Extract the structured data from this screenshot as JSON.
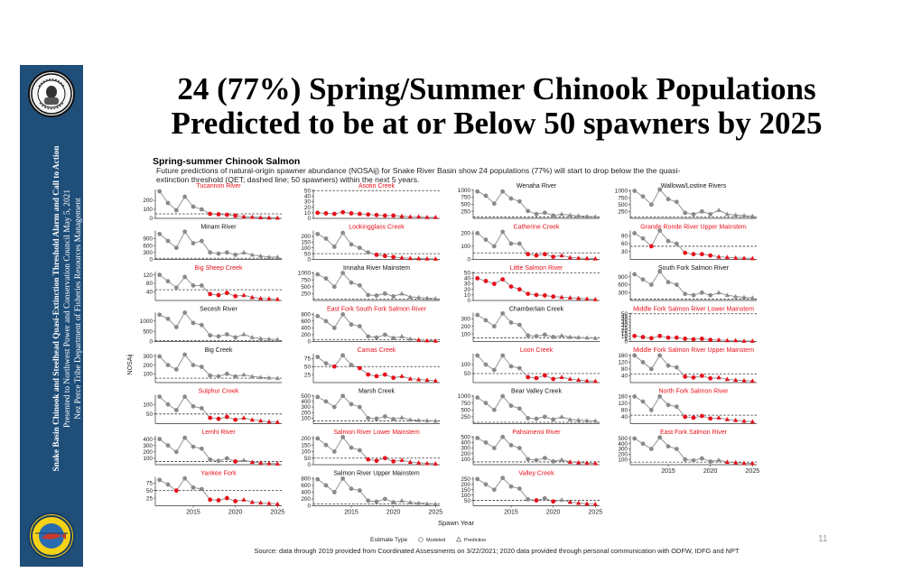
{
  "slide": {
    "title": "24 (77%) Spring/Summer Chinook Populations Predicted to be at or Below 50 spawners by 2025",
    "page_number": "11",
    "source_note": "Source: data through 2019 provided from Coordinated Assessments on 3/22/2021; 2020 data provided through personal communication with ODFW, IDFG and NPT",
    "sidebar": {
      "line1": "Snake Basin Chinook and Steelhead Quasi-Extinction Threshold Alarm and Call to Action",
      "line2": "Presented to Northwest Power and Conservation Council May 5, 2021",
      "line3": "Nez Perce Tribe Department of Fisheries Resources Management"
    },
    "colors": {
      "sidebar": "#1f4e79",
      "modeled": "#8a8a8a",
      "below_threshold": "#e8101a",
      "line": "#8a8a8a"
    }
  },
  "chart_data": {
    "type": "scatter",
    "title": "Spring-summer Chinook Salmon",
    "subtitle": "Future predictions of natural-origin spawner abundance (NOSAij) for Snake River Basin show 24 populations (77%) will start to drop below the the quasi-extinction threshold (QET; dashed line; 50 spawners) within the next 5 years.",
    "xlabel": "Spawn Year",
    "ylabel": "NOSAij",
    "x_ticks": [
      2015,
      2020,
      2025
    ],
    "xlim": [
      2010.5,
      2025.5
    ],
    "threshold": 50,
    "legend": {
      "title": "Estimate Type",
      "modeled": "Modeled",
      "prediction": "Prediction"
    },
    "panels": [
      {
        "name": "Tucannon River",
        "red": true,
        "ymax": 320,
        "ticks": [
          0,
          100,
          200
        ],
        "values": [
          300,
          170,
          90,
          240,
          130,
          100,
          50,
          45,
          40,
          30,
          20,
          15,
          10,
          8,
          6
        ]
      },
      {
        "name": "Asotin Creek",
        "red": true,
        "ymax": 52,
        "ticks": [
          0,
          10,
          20,
          30,
          40,
          50
        ],
        "values": [
          10,
          9,
          8,
          11,
          9,
          8,
          7,
          6,
          5,
          5,
          4,
          3,
          3,
          2,
          2
        ]
      },
      {
        "name": "Wenaha River",
        "red": false,
        "ymax": 1020,
        "ticks": [
          250,
          500,
          750,
          1000
        ],
        "values": [
          950,
          800,
          520,
          950,
          700,
          600,
          260,
          150,
          200,
          100,
          150,
          110,
          90,
          70,
          60
        ]
      },
      {
        "name": "Wallowa/Lostine Rivers",
        "red": false,
        "ymax": 1050,
        "ticks": [
          250,
          500,
          750,
          1000
        ],
        "values": [
          1000,
          800,
          500,
          1050,
          700,
          600,
          200,
          150,
          250,
          150,
          300,
          150,
          120,
          100,
          80
        ]
      },
      {
        "name": "Minam River",
        "red": false,
        "ymax": 1250,
        "ticks": [
          0,
          300,
          600,
          900
        ],
        "values": [
          1100,
          800,
          500,
          1200,
          700,
          800,
          300,
          250,
          300,
          200,
          300,
          200,
          150,
          100,
          100
        ]
      },
      {
        "name": "Lookingglass Creek",
        "red": true,
        "ymax": 250,
        "ticks": [
          0,
          50,
          100,
          150,
          200
        ],
        "values": [
          220,
          180,
          110,
          230,
          130,
          100,
          60,
          40,
          30,
          20,
          15,
          10,
          8,
          6,
          5
        ]
      },
      {
        "name": "Catherine Creek",
        "red": true,
        "ymax": 220,
        "ticks": [
          0,
          100,
          200
        ],
        "values": [
          200,
          150,
          100,
          210,
          120,
          120,
          40,
          30,
          40,
          20,
          30,
          15,
          10,
          8,
          6
        ]
      },
      {
        "name": "Grande Ronde River Upper Mainstem",
        "red": true,
        "ymax": 110,
        "ticks": [
          30,
          60,
          90
        ],
        "values": [
          100,
          80,
          50,
          110,
          70,
          60,
          25,
          20,
          20,
          15,
          10,
          8,
          6,
          5,
          4
        ]
      },
      {
        "name": "Big Sheep Creek",
        "red": true,
        "ymax": 135,
        "ticks": [
          40,
          80,
          120
        ],
        "values": [
          120,
          90,
          60,
          110,
          70,
          70,
          30,
          25,
          35,
          20,
          25,
          15,
          10,
          8,
          6
        ]
      },
      {
        "name": "Imnaha River Mainstem",
        "red": false,
        "ymax": 1050,
        "ticks": [
          250,
          500,
          750,
          1000
        ],
        "values": [
          950,
          800,
          500,
          1000,
          650,
          550,
          200,
          180,
          250,
          150,
          250,
          130,
          110,
          90,
          70
        ]
      },
      {
        "name": "Little Salmon River",
        "red": true,
        "ymax": 52,
        "ticks": [
          0,
          10,
          20,
          30,
          40,
          50
        ],
        "values": [
          40,
          35,
          30,
          38,
          25,
          20,
          12,
          10,
          9,
          7,
          6,
          5,
          4,
          3,
          2
        ]
      },
      {
        "name": "South Fork Salmon River",
        "red": false,
        "ymax": 1100,
        "ticks": [
          300,
          600,
          900
        ],
        "values": [
          1000,
          800,
          600,
          1100,
          700,
          600,
          250,
          200,
          300,
          200,
          300,
          200,
          150,
          120,
          100
        ]
      },
      {
        "name": "Secesh River",
        "red": false,
        "ymax": 1400,
        "ticks": [
          0,
          500,
          1000
        ],
        "values": [
          1300,
          1100,
          700,
          1400,
          900,
          800,
          300,
          250,
          350,
          200,
          350,
          200,
          150,
          120,
          100
        ]
      },
      {
        "name": "East Fork South Fork Salmon River",
        "red": true,
        "ymax": 850,
        "ticks": [
          0,
          200,
          400,
          600,
          800
        ],
        "values": [
          750,
          600,
          400,
          800,
          500,
          450,
          150,
          120,
          200,
          100,
          150,
          80,
          50,
          30,
          20
        ]
      },
      {
        "name": "Chamberlain Creek",
        "red": false,
        "ymax": 380,
        "ticks": [
          100,
          200,
          300
        ],
        "values": [
          350,
          280,
          200,
          370,
          250,
          220,
          80,
          70,
          90,
          60,
          80,
          60,
          55,
          50,
          45
        ]
      },
      {
        "name": "Middle Fork Salmon River Lower Mainstem",
        "red": true,
        "ymax": 52,
        "ticks": [
          0,
          5,
          10,
          15,
          20,
          25,
          30,
          35,
          40,
          45,
          50
        ],
        "values": [
          10,
          8,
          6,
          10,
          7,
          7,
          5,
          4,
          5,
          3,
          3,
          2,
          2,
          1,
          1
        ]
      },
      {
        "name": "Big Creek",
        "red": false,
        "ymax": 330,
        "ticks": [
          100,
          200,
          300
        ],
        "values": [
          300,
          200,
          150,
          320,
          200,
          180,
          80,
          70,
          100,
          70,
          90,
          70,
          60,
          55,
          50
        ]
      },
      {
        "name": "Camas Creek",
        "red": true,
        "ymax": 90,
        "ticks": [
          25,
          50,
          75
        ],
        "values": [
          80,
          60,
          50,
          85,
          55,
          45,
          25,
          20,
          25,
          15,
          20,
          12,
          10,
          8,
          6
        ]
      },
      {
        "name": "Loon Creek",
        "red": true,
        "ymax": 160,
        "ticks": [
          50,
          100
        ],
        "values": [
          150,
          100,
          70,
          150,
          90,
          80,
          30,
          25,
          40,
          20,
          30,
          20,
          15,
          10,
          8
        ]
      },
      {
        "name": "Middle Fork Salmon River Upper Mainstem",
        "red": true,
        "ymax": 170,
        "ticks": [
          40,
          80,
          120,
          160
        ],
        "values": [
          160,
          120,
          80,
          160,
          100,
          90,
          35,
          30,
          40,
          25,
          30,
          20,
          15,
          12,
          10
        ]
      },
      {
        "name": "Sulphur Creek",
        "red": true,
        "ymax": 150,
        "ticks": [
          50,
          100
        ],
        "values": [
          140,
          100,
          70,
          140,
          90,
          80,
          30,
          25,
          35,
          20,
          30,
          20,
          15,
          10,
          8
        ]
      },
      {
        "name": "Marsh Creek",
        "red": false,
        "ymax": 520,
        "ticks": [
          100,
          200,
          300,
          400,
          500
        ],
        "values": [
          480,
          400,
          300,
          500,
          350,
          300,
          100,
          90,
          130,
          80,
          110,
          70,
          60,
          55,
          50
        ]
      },
      {
        "name": "Bear Valley Creek",
        "red": false,
        "ymax": 1050,
        "ticks": [
          250,
          500,
          750,
          1000
        ],
        "values": [
          950,
          750,
          500,
          1000,
          650,
          550,
          200,
          180,
          250,
          150,
          250,
          150,
          130,
          110,
          100
        ]
      },
      {
        "name": "North Fork Salmon River",
        "red": true,
        "ymax": 170,
        "ticks": [
          40,
          80,
          120,
          160
        ],
        "values": [
          160,
          130,
          80,
          160,
          110,
          100,
          40,
          35,
          45,
          30,
          35,
          25,
          20,
          15,
          12
        ]
      },
      {
        "name": "Lemhi River",
        "red": true,
        "ymax": 450,
        "ticks": [
          100,
          200,
          300,
          400
        ],
        "values": [
          400,
          300,
          200,
          420,
          280,
          250,
          80,
          60,
          100,
          50,
          70,
          40,
          30,
          20,
          15
        ]
      },
      {
        "name": "Salmon River Lower Mainstem",
        "red": true,
        "ymax": 220,
        "ticks": [
          0,
          50,
          100,
          150,
          200
        ],
        "values": [
          200,
          150,
          100,
          210,
          130,
          110,
          40,
          30,
          50,
          25,
          35,
          20,
          15,
          10,
          8
        ]
      },
      {
        "name": "Pahsimeroi River",
        "red": true,
        "ymax": 520,
        "ticks": [
          100,
          200,
          300,
          400,
          500
        ],
        "values": [
          480,
          400,
          300,
          500,
          350,
          300,
          100,
          80,
          120,
          60,
          90,
          50,
          40,
          30,
          25
        ]
      },
      {
        "name": "East Fork Salmon River",
        "red": true,
        "ymax": 550,
        "ticks": [
          100,
          200,
          300,
          400,
          500
        ],
        "values": [
          500,
          400,
          300,
          520,
          350,
          300,
          100,
          80,
          120,
          60,
          90,
          50,
          40,
          30,
          25
        ]
      },
      {
        "name": "Yankee Fork",
        "red": true,
        "ymax": 95,
        "ticks": [
          25,
          50,
          75
        ],
        "values": [
          85,
          70,
          50,
          90,
          60,
          55,
          20,
          18,
          25,
          15,
          20,
          12,
          10,
          8,
          6
        ]
      },
      {
        "name": "Salmon River Upper Mainstem",
        "red": false,
        "ymax": 850,
        "ticks": [
          0,
          200,
          400,
          600,
          800
        ],
        "values": [
          780,
          600,
          400,
          800,
          500,
          450,
          150,
          120,
          200,
          100,
          150,
          100,
          80,
          60,
          50
        ]
      },
      {
        "name": "Valley Creek",
        "red": true,
        "ymax": 270,
        "ticks": [
          50,
          100,
          150,
          200,
          250
        ],
        "values": [
          250,
          200,
          150,
          260,
          180,
          160,
          60,
          50,
          70,
          40,
          55,
          35,
          25,
          20,
          15
        ]
      }
    ]
  }
}
